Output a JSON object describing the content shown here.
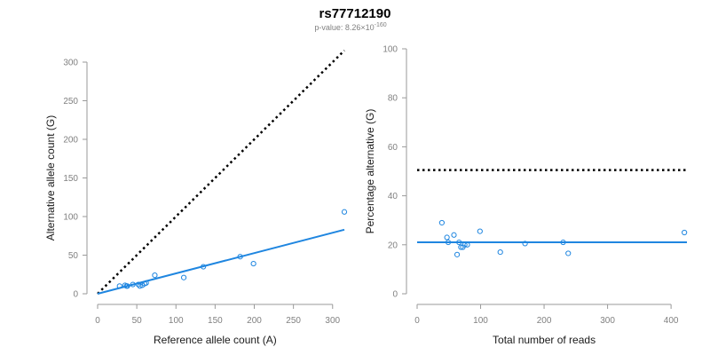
{
  "title": "rs77712190",
  "subtitle": {
    "prefix": "p-value: 8.26×10",
    "exponent": "-160"
  },
  "colors": {
    "series": "#1f86e0",
    "expected": "#000000",
    "axis": "#9a9a9a"
  },
  "chart_data": [
    {
      "type": "scatter",
      "xlabel": "Reference allele count (A)",
      "ylabel": "Alternative allele count (G)",
      "xlim": [
        0,
        315
      ],
      "ylim": [
        0,
        300
      ],
      "xticks": [
        0,
        50,
        100,
        150,
        200,
        250,
        300
      ],
      "yticks": [
        0,
        50,
        100,
        150,
        200,
        250,
        300
      ],
      "points": [
        [
          28,
          10
        ],
        [
          35,
          11
        ],
        [
          37,
          10
        ],
        [
          38,
          10
        ],
        [
          45,
          12
        ],
        [
          52,
          12
        ],
        [
          54,
          10
        ],
        [
          57,
          11
        ],
        [
          60,
          13
        ],
        [
          62,
          14
        ],
        [
          73,
          24
        ],
        [
          110,
          21
        ],
        [
          135,
          35
        ],
        [
          182,
          48
        ],
        [
          199,
          39
        ],
        [
          315,
          106
        ]
      ],
      "fit_line": {
        "x": [
          0,
          315
        ],
        "y": [
          0,
          83
        ]
      },
      "expected_line": {
        "x": [
          0,
          315
        ],
        "y": [
          0,
          315
        ],
        "style": "dotted"
      }
    },
    {
      "type": "scatter",
      "xlabel": "Total number of reads",
      "ylabel": "Percentage alternative (G)",
      "xlim": [
        0,
        425
      ],
      "ylim": [
        0,
        100
      ],
      "xticks": [
        0,
        100,
        200,
        300,
        400
      ],
      "yticks": [
        0,
        20,
        40,
        60,
        80,
        100
      ],
      "points": [
        [
          39,
          29
        ],
        [
          47,
          23
        ],
        [
          49,
          21
        ],
        [
          58,
          24
        ],
        [
          63,
          16
        ],
        [
          66,
          21
        ],
        [
          69,
          19
        ],
        [
          72,
          19
        ],
        [
          75,
          20
        ],
        [
          79,
          20
        ],
        [
          99,
          25.5
        ],
        [
          131,
          17
        ],
        [
          170,
          20.5
        ],
        [
          230,
          21
        ],
        [
          238,
          16.5
        ],
        [
          421,
          25
        ]
      ],
      "fit_line": {
        "x": [
          0,
          425
        ],
        "y": [
          21,
          21
        ]
      },
      "expected_line": {
        "x": [
          0,
          425
        ],
        "y": [
          50.5,
          50.5
        ],
        "style": "dotted"
      }
    }
  ]
}
